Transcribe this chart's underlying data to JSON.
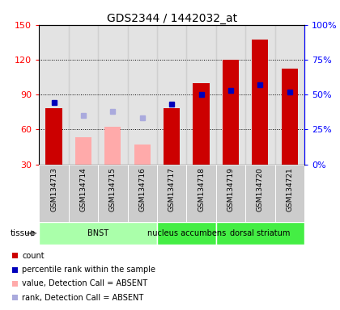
{
  "title": "GDS2344 / 1442032_at",
  "samples": [
    "GSM134713",
    "GSM134714",
    "GSM134715",
    "GSM134716",
    "GSM134717",
    "GSM134718",
    "GSM134719",
    "GSM134720",
    "GSM134721"
  ],
  "tissues": [
    {
      "label": "BNST",
      "start": 0,
      "end": 3
    },
    {
      "label": "nucleus accumbens",
      "start": 4,
      "end": 5
    },
    {
      "label": "dorsal striatum",
      "start": 6,
      "end": 8
    }
  ],
  "tissue_colors": [
    "#aaffaa",
    "#44ee44",
    "#44ee44"
  ],
  "count_present": [
    78,
    null,
    null,
    null,
    78,
    100,
    120,
    137,
    112
  ],
  "count_absent": [
    null,
    53,
    62,
    47,
    null,
    null,
    null,
    null,
    null
  ],
  "rank_present": [
    44,
    null,
    null,
    null,
    43,
    50,
    53,
    57,
    52
  ],
  "rank_absent": [
    null,
    35,
    38,
    33,
    null,
    null,
    null,
    null,
    null
  ],
  "left_ylim": [
    30,
    150
  ],
  "right_ylim": [
    0,
    100
  ],
  "left_yticks": [
    30,
    60,
    90,
    120,
    150
  ],
  "right_yticks": [
    0,
    25,
    50,
    75,
    100
  ],
  "right_yticklabels": [
    "0%",
    "25%",
    "50%",
    "75%",
    "100%"
  ],
  "red_color": "#cc0000",
  "pink_color": "#ffaaaa",
  "blue_color": "#0000bb",
  "lightblue_color": "#aaaadd",
  "bg_sample_color": "#cccccc",
  "grid_color": "#000000"
}
